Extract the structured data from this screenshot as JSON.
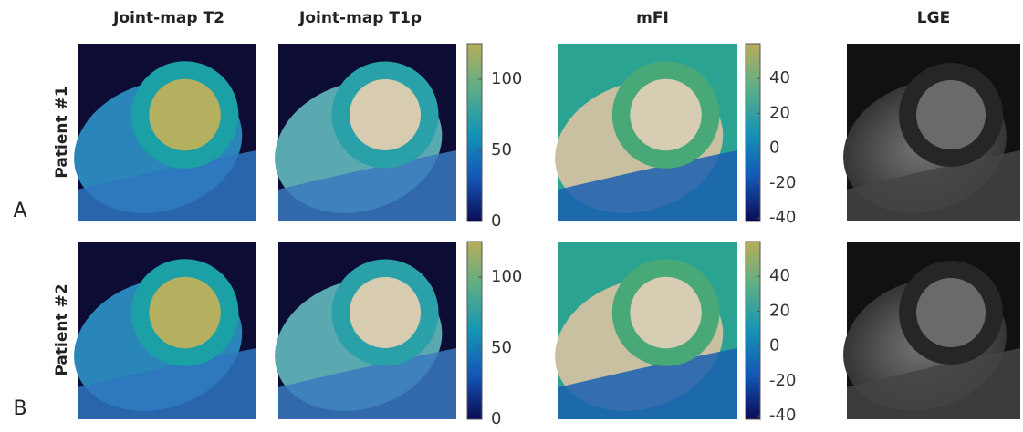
{
  "columns": [
    "Joint-map T2",
    "Joint-map T1ρ",
    "mFI",
    "LGE"
  ],
  "rows": [
    {
      "letter": "A",
      "label": "Patient #1"
    },
    {
      "letter": "B",
      "label": "Patient #2"
    }
  ],
  "colorbars": [
    {
      "range": [
        0,
        125
      ],
      "ticks": [
        0,
        50,
        100
      ]
    },
    {
      "range": [
        -42,
        60
      ],
      "ticks": [
        -40,
        -20,
        0,
        20,
        40
      ]
    }
  ]
}
